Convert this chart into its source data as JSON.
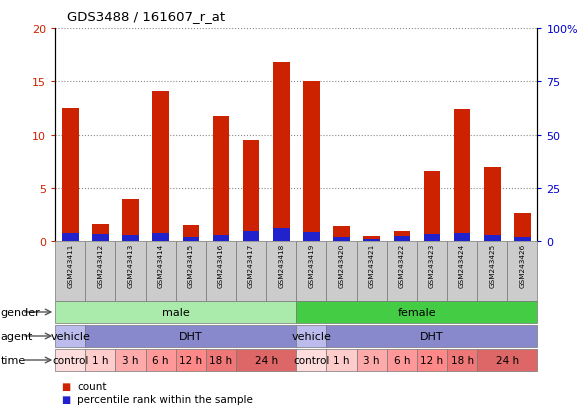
{
  "title": "GDS3488 / 161607_r_at",
  "samples": [
    "GSM243411",
    "GSM243412",
    "GSM243413",
    "GSM243414",
    "GSM243415",
    "GSM243416",
    "GSM243417",
    "GSM243418",
    "GSM243419",
    "GSM243420",
    "GSM243421",
    "GSM243422",
    "GSM243423",
    "GSM243424",
    "GSM243425",
    "GSM243426"
  ],
  "count_values": [
    12.5,
    1.6,
    4.0,
    14.1,
    1.5,
    11.7,
    9.5,
    16.8,
    15.0,
    1.4,
    0.5,
    1.0,
    6.6,
    12.4,
    7.0,
    2.6
  ],
  "percentile_values": [
    0.8,
    0.7,
    0.6,
    0.8,
    0.4,
    0.55,
    0.95,
    1.2,
    0.9,
    0.4,
    0.25,
    0.5,
    0.7,
    0.8,
    0.6,
    0.4
  ],
  "count_color": "#CC2200",
  "percentile_color": "#2222CC",
  "ylim_left": [
    0,
    20
  ],
  "ylim_right": [
    0,
    100
  ],
  "yticks_left": [
    0,
    5,
    10,
    15,
    20
  ],
  "yticks_right": [
    0,
    25,
    50,
    75,
    100
  ],
  "ytick_labels_left": [
    "0",
    "5",
    "10",
    "15",
    "20"
  ],
  "ytick_labels_right": [
    "0",
    "25",
    "50",
    "75",
    "100%"
  ],
  "gender_groups": [
    {
      "text": "male",
      "start": 0,
      "end": 8,
      "color": "#AAEAAA"
    },
    {
      "text": "female",
      "start": 8,
      "end": 16,
      "color": "#44CC44"
    }
  ],
  "agent_groups": [
    {
      "text": "vehicle",
      "start": 0,
      "end": 1,
      "color": "#BBBBEE"
    },
    {
      "text": "DHT",
      "start": 1,
      "end": 8,
      "color": "#8888CC"
    },
    {
      "text": "vehicle",
      "start": 8,
      "end": 9,
      "color": "#BBBBEE"
    },
    {
      "text": "DHT",
      "start": 9,
      "end": 16,
      "color": "#8888CC"
    }
  ],
  "time_groups": [
    {
      "text": "control",
      "start": 0,
      "end": 1,
      "color": "#FFDDDD"
    },
    {
      "text": "1 h",
      "start": 1,
      "end": 2,
      "color": "#FFCCCC"
    },
    {
      "text": "3 h",
      "start": 2,
      "end": 3,
      "color": "#FFAAAA"
    },
    {
      "text": "6 h",
      "start": 3,
      "end": 4,
      "color": "#FF9999"
    },
    {
      "text": "12 h",
      "start": 4,
      "end": 5,
      "color": "#FF8888"
    },
    {
      "text": "18 h",
      "start": 5,
      "end": 6,
      "color": "#EE7777"
    },
    {
      "text": "24 h",
      "start": 6,
      "end": 8,
      "color": "#DD6666"
    },
    {
      "text": "control",
      "start": 8,
      "end": 9,
      "color": "#FFDDDD"
    },
    {
      "text": "1 h",
      "start": 9,
      "end": 10,
      "color": "#FFCCCC"
    },
    {
      "text": "3 h",
      "start": 10,
      "end": 11,
      "color": "#FFAAAA"
    },
    {
      "text": "6 h",
      "start": 11,
      "end": 12,
      "color": "#FF9999"
    },
    {
      "text": "12 h",
      "start": 12,
      "end": 13,
      "color": "#FF8888"
    },
    {
      "text": "18 h",
      "start": 13,
      "end": 14,
      "color": "#EE7777"
    },
    {
      "text": "24 h",
      "start": 14,
      "end": 16,
      "color": "#DD6666"
    }
  ],
  "legend_count": "count",
  "legend_percentile": "percentile rank within the sample",
  "bar_width": 0.55,
  "background_color": "#FFFFFF",
  "plot_bg_color": "#FFFFFF",
  "grid_color": "#888888",
  "tick_label_color_left": "#CC2200",
  "tick_label_color_right": "#0000CC",
  "sample_box_color": "#CCCCCC",
  "n_samples": 16,
  "xlim_left": -0.5,
  "xlim_right": 15.5
}
